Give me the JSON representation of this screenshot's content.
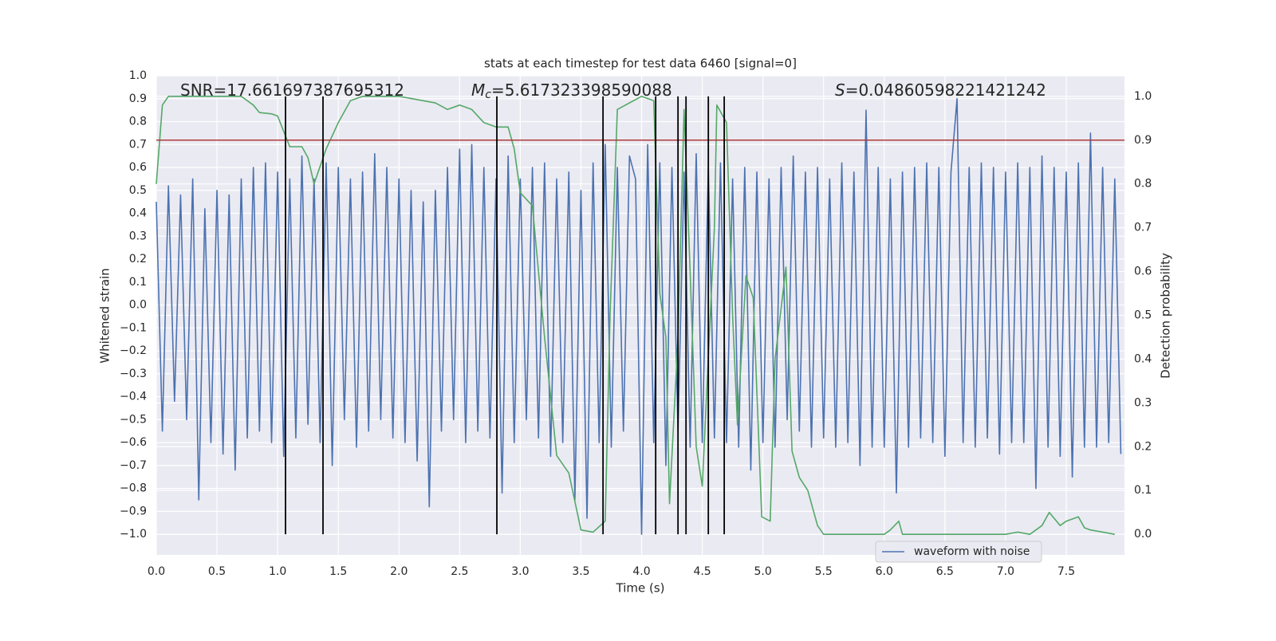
{
  "chart_data": {
    "type": "line",
    "title": "stats at each timestep for test data 6460 [signal=0]",
    "xlabel": "Time (s)",
    "ylabel": "Whitened strain",
    "y2label": "Detection probability",
    "annotations": [
      {
        "text": "SNR=17.661697387695312"
      },
      {
        "symbol": "M",
        "subscript": "c",
        "text": "=5.617323398590088"
      },
      {
        "symbol": "S",
        "text": "=0.04860598221421242"
      }
    ],
    "xlim": [
      0,
      7.98
    ],
    "ylim": [
      -1.09,
      1.0
    ],
    "y2lim": [
      -0.047,
      1.047
    ],
    "xticks": [
      {
        "value": 0,
        "label": "0.0"
      },
      0.5,
      {
        "value": 1,
        "label": "1.0"
      },
      1.5,
      {
        "value": 2,
        "label": "2.0"
      },
      2.5,
      {
        "value": 3,
        "label": "3.0"
      },
      3.5,
      {
        "value": 4,
        "label": "4.0"
      },
      4.5,
      {
        "value": 5,
        "label": "5.0"
      },
      5.5,
      {
        "value": 6,
        "label": "6.0"
      },
      6.5,
      {
        "value": 7,
        "label": "7.0"
      },
      7.5
    ],
    "yticks": [
      {
        "value": 1,
        "label": "1.0"
      },
      0.9,
      0.8,
      0.7,
      0.6,
      0.5,
      0.4,
      0.3,
      0.2,
      0.1,
      {
        "value": 0,
        "label": "0.0"
      },
      {
        "value": -0.1,
        "label": "−0.1"
      },
      {
        "value": -0.2,
        "label": "−0.2"
      },
      {
        "value": -0.3,
        "label": "−0.3"
      },
      {
        "value": -0.4,
        "label": "−0.4"
      },
      {
        "value": -0.5,
        "label": "−0.5"
      },
      {
        "value": -0.6,
        "label": "−0.6"
      },
      {
        "value": -0.7,
        "label": "−0.7"
      },
      {
        "value": -0.8,
        "label": "−0.8"
      },
      {
        "value": -0.9,
        "label": "−0.9"
      },
      {
        "value": -1,
        "label": "−1.0"
      }
    ],
    "y2ticks": [
      {
        "value": 0,
        "label": "0.0"
      },
      0.1,
      0.2,
      0.3,
      0.4,
      0.5,
      0.6,
      0.7,
      0.8,
      0.9,
      {
        "value": 1,
        "label": "1.0"
      }
    ],
    "grid": true,
    "legend": "lower right",
    "series": [
      {
        "name": "waveform with noise",
        "color": "#4c72b0",
        "x": [
          0,
          0.05,
          0.1,
          0.15,
          0.2,
          0.25,
          0.3,
          0.35,
          0.4,
          0.45,
          0.5,
          0.55,
          0.6,
          0.65,
          0.7,
          0.75,
          0.8,
          0.85,
          0.9,
          0.95,
          1,
          1.05,
          1.1,
          1.15,
          1.2,
          1.25,
          1.3,
          1.35,
          1.4,
          1.45,
          1.5,
          1.55,
          1.6,
          1.65,
          1.7,
          1.75,
          1.8,
          1.85,
          1.9,
          1.95,
          2,
          2.05,
          2.1,
          2.15,
          2.2,
          2.25,
          2.3,
          2.35,
          2.4,
          2.45,
          2.5,
          2.55,
          2.6,
          2.65,
          2.7,
          2.75,
          2.8,
          2.85,
          2.9,
          2.95,
          3,
          3.05,
          3.1,
          3.15,
          3.2,
          3.25,
          3.3,
          3.35,
          3.4,
          3.45,
          3.5,
          3.55,
          3.6,
          3.65,
          3.7,
          3.75,
          3.8,
          3.85,
          3.9,
          3.95,
          4,
          4.05,
          4.1,
          4.15,
          4.2,
          4.25,
          4.3,
          4.35,
          4.4,
          4.45,
          4.5,
          4.55,
          4.6,
          4.65,
          4.7,
          4.75,
          4.8,
          4.85,
          4.9,
          4.95,
          5,
          5.05,
          5.1,
          5.15,
          5.2,
          5.25,
          5.3,
          5.35,
          5.4,
          5.45,
          5.5,
          5.55,
          5.6,
          5.65,
          5.7,
          5.75,
          5.8,
          5.85,
          5.9,
          5.95,
          6,
          6.05,
          6.1,
          6.15,
          6.2,
          6.25,
          6.3,
          6.35,
          6.4,
          6.45,
          6.5,
          6.55,
          6.6,
          6.65,
          6.7,
          6.75,
          6.8,
          6.85,
          6.9,
          6.95,
          7,
          7.05,
          7.1,
          7.15,
          7.2,
          7.25,
          7.3,
          7.35,
          7.4,
          7.45,
          7.5,
          7.55,
          7.6,
          7.65,
          7.7,
          7.75,
          7.8,
          7.85,
          7.9,
          7.95
        ],
        "values": [
          0.45,
          -0.55,
          0.52,
          -0.42,
          0.48,
          -0.5,
          0.55,
          -0.85,
          0.42,
          -0.6,
          0.5,
          -0.65,
          0.48,
          -0.72,
          0.55,
          -0.58,
          0.6,
          -0.55,
          0.62,
          -0.6,
          0.58,
          -0.66,
          0.55,
          -0.58,
          0.65,
          -0.52,
          0.55,
          -0.6,
          0.62,
          -0.7,
          0.6,
          -0.5,
          0.55,
          -0.62,
          0.58,
          -0.55,
          0.66,
          -0.5,
          0.6,
          -0.58,
          0.55,
          -0.6,
          0.5,
          -0.68,
          0.45,
          -0.88,
          0.5,
          -0.55,
          0.6,
          -0.5,
          0.68,
          -0.6,
          0.7,
          -0.55,
          0.6,
          -0.58,
          0.55,
          -0.82,
          0.65,
          -0.6,
          0.55,
          -0.5,
          0.6,
          -0.58,
          0.62,
          -0.66,
          0.55,
          -0.6,
          0.58,
          -0.85,
          0.5,
          -0.93,
          0.62,
          -0.6,
          0.7,
          -0.62,
          0.6,
          -0.55,
          0.65,
          0.55,
          -1.0,
          0.7,
          -0.6,
          0.62,
          -0.7,
          0.6,
          -0.55,
          0.58,
          -0.62,
          0.66,
          -0.6,
          0.6,
          -0.58,
          0.62,
          -0.6,
          0.55,
          -0.62,
          0.6,
          -0.72,
          0.58,
          -0.6,
          0.55,
          -0.62,
          0.6,
          -0.5,
          0.65,
          -0.55,
          0.58,
          -0.62,
          0.6,
          -0.58,
          0.55,
          -0.62,
          0.62,
          -0.6,
          0.58,
          -0.7,
          0.85,
          -0.62,
          0.6,
          -0.62,
          0.55,
          -0.82,
          0.58,
          -0.62,
          0.6,
          -0.58,
          0.62,
          -0.6,
          0.6,
          -0.66,
          0.58,
          0.9,
          -0.6,
          0.6,
          -0.62,
          0.62,
          -0.58,
          0.6,
          -0.65,
          0.58,
          -0.6,
          0.62,
          -0.6,
          0.6,
          -0.8,
          0.65,
          -0.62,
          0.6,
          -0.66,
          0.58,
          -0.75,
          0.62,
          -0.62,
          0.75,
          -0.62,
          0.6,
          -0.6,
          0.55,
          -0.65
        ]
      },
      {
        "color": "#55a868",
        "axis": "y2",
        "x": [
          0,
          0.05,
          0.1,
          0.3,
          0.5,
          0.7,
          0.8,
          0.85,
          0.95,
          1,
          1.1,
          1.2,
          1.25,
          1.3,
          1.4,
          1.5,
          1.6,
          1.7,
          2,
          2.1,
          2.2,
          2.3,
          2.4,
          2.5,
          2.6,
          2.7,
          2.8,
          2.9,
          2.95,
          3,
          3.1,
          3.2,
          3.3,
          3.4,
          3.5,
          3.6,
          3.7,
          3.74,
          3.8,
          4,
          4.1,
          4.15,
          4.2,
          4.23,
          4.3,
          4.35,
          4.4,
          4.45,
          4.5,
          4.6,
          4.62,
          4.7,
          4.75,
          4.79,
          4.86,
          4.92,
          4.99,
          5.06,
          5.1,
          5.19,
          5.24,
          5.3,
          5.37,
          5.45,
          5.5,
          5.7,
          6,
          6.05,
          6.12,
          6.15,
          6.2,
          6.5,
          7,
          7.1,
          7.2,
          7.3,
          7.36,
          7.45,
          7.5,
          7.6,
          7.65,
          7.7,
          7.8,
          7.9
        ],
        "values": [
          0.8,
          0.98,
          1.0,
          1.0,
          1.0,
          1.0,
          0.98,
          0.963,
          0.96,
          0.955,
          0.885,
          0.885,
          0.86,
          0.8,
          0.88,
          0.94,
          0.99,
          1.0,
          1.0,
          0.995,
          0.99,
          0.985,
          0.97,
          0.98,
          0.97,
          0.94,
          0.93,
          0.93,
          0.88,
          0.78,
          0.75,
          0.45,
          0.18,
          0.14,
          0.01,
          0.005,
          0.03,
          0.5,
          0.97,
          1.0,
          0.99,
          0.55,
          0.45,
          0.07,
          0.45,
          0.97,
          0.6,
          0.2,
          0.11,
          0.7,
          0.98,
          0.94,
          0.5,
          0.25,
          0.59,
          0.54,
          0.04,
          0.03,
          0.4,
          0.61,
          0.19,
          0.13,
          0.1,
          0.02,
          0.0,
          0.0,
          0.0,
          0.01,
          0.03,
          0.0,
          0.0,
          0.0,
          0.0,
          0.005,
          0.0,
          0.02,
          0.05,
          0.02,
          0.03,
          0.04,
          0.015,
          0.01,
          0.005,
          0.0
        ]
      }
    ],
    "threshold": {
      "value": 0.9,
      "axis": "y2",
      "color": "#b03a3a"
    },
    "vlines": {
      "color": "#000000",
      "x": [
        1.065,
        1.374,
        2.807,
        3.682,
        4.116,
        4.3,
        4.366,
        4.55,
        4.681
      ]
    }
  }
}
